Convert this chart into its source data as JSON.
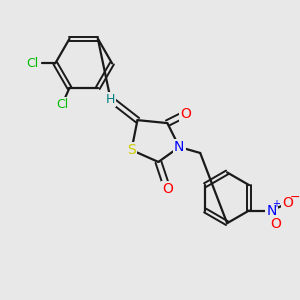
{
  "background_color": "#e8e8e8",
  "figsize": [
    3.0,
    3.0
  ],
  "dpi": 100,
  "colors": {
    "bond": "#1a1a1a",
    "S": "#cccc00",
    "O": "#ff0000",
    "N": "#0000ff",
    "H": "#008080",
    "Cl": "#00bb00",
    "Nplus_color": "#0000ff",
    "Ominus_color": "#ff0000"
  }
}
